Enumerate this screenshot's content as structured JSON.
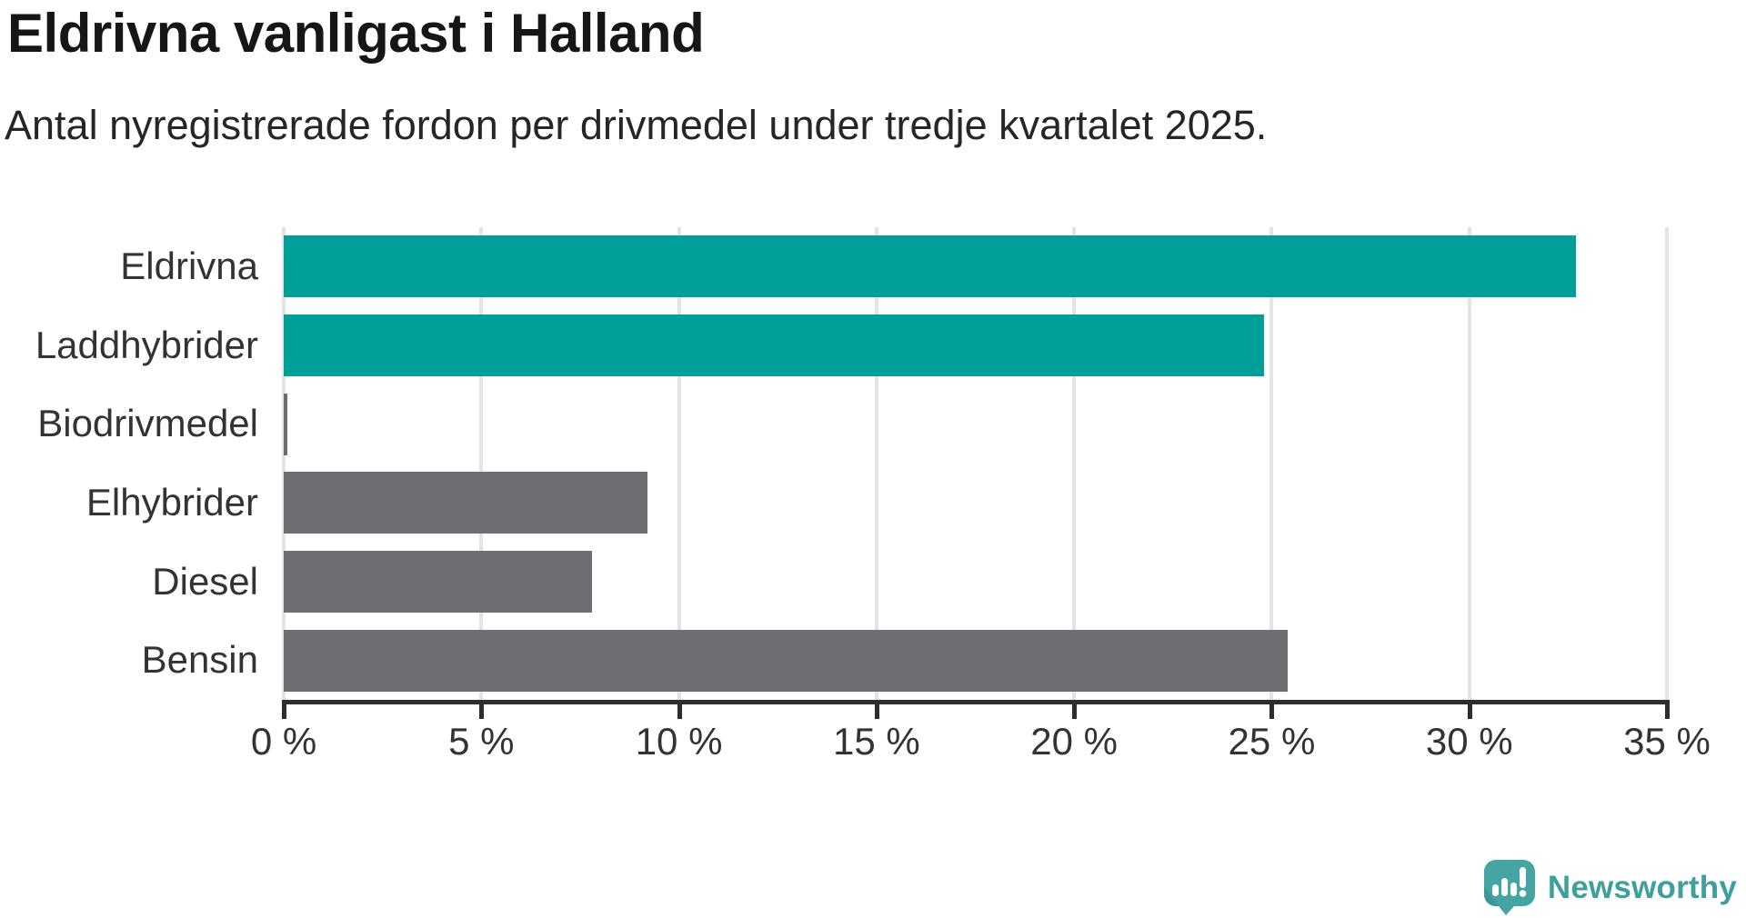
{
  "title": "Eldrivna vanligast i Halland",
  "subtitle": "Antal nyregistrerade fordon per drivmedel under tredje kvartalet 2025.",
  "chart_data": {
    "type": "bar",
    "orientation": "horizontal",
    "categories": [
      "Eldrivna",
      "Laddhybrider",
      "Biodrivmedel",
      "Elhybrider",
      "Diesel",
      "Bensin"
    ],
    "values": [
      32.7,
      24.8,
      0.1,
      9.2,
      7.8,
      25.4
    ],
    "unit": "%",
    "bar_colors": [
      "#00a099",
      "#00a099",
      "#6e6e73",
      "#6e6e73",
      "#6e6e73",
      "#6e6e73"
    ],
    "xlabel": "",
    "ylabel": "",
    "xlim": [
      0,
      35
    ],
    "x_tick_labels": [
      "0 %",
      "5 %",
      "10 %",
      "15 %",
      "20 %",
      "25 %",
      "30 %",
      "35 %"
    ],
    "x_tick_values": [
      0,
      5,
      10,
      15,
      20,
      25,
      30,
      35
    ],
    "grid": true,
    "legend": false
  },
  "colors": {
    "accent_teal": "#00a099",
    "neutral_gray": "#6e6e73",
    "gridline": "#e4e4e4",
    "axis": "#2d2d2d",
    "title_text": "#161616",
    "label_text": "#333333",
    "logo_teal": "#3f9f9c"
  },
  "branding": {
    "logo_text": "Newsworthy",
    "logo_icon": "speech-bubble-bar-chart-exclamation"
  }
}
